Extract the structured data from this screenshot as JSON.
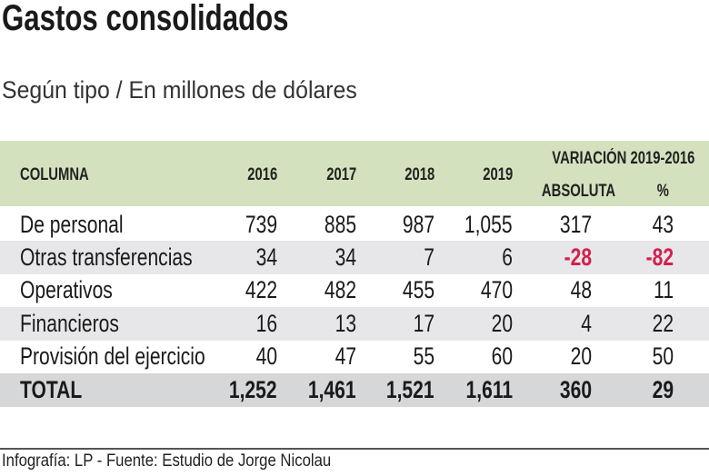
{
  "title": "Gastos consolidados",
  "subtitle": "Según tipo / En millones de dólares",
  "source": "Infografía: LP - Fuente: Estudio de Jorge Nicolau",
  "colors": {
    "header_bg": "#d4e1be",
    "alt_row": "#e7e7e9",
    "total_row": "#d6d7d9",
    "negative": "#d2204d"
  },
  "chart_data": {
    "type": "table",
    "title": "Gastos consolidados",
    "subtitle": "Según tipo / En millones de dólares",
    "header": {
      "column": "COLUMNA",
      "years": [
        "2016",
        "2017",
        "2018",
        "2019"
      ],
      "variation_group": "VARIACIÓN 2019-2016",
      "absolute": "ABSOLUTA",
      "percent": "%"
    },
    "rows": [
      {
        "label": "De personal",
        "values": [
          "739",
          "885",
          "987",
          "1,055"
        ],
        "absolute": "317",
        "percent": "43"
      },
      {
        "label": "Otras transferencias",
        "values": [
          "34",
          "34",
          "7",
          "6"
        ],
        "absolute": "-28",
        "percent": "-82"
      },
      {
        "label": "Operativos",
        "values": [
          "422",
          "482",
          "455",
          "470"
        ],
        "absolute": "48",
        "percent": "11"
      },
      {
        "label": "Financieros",
        "values": [
          "16",
          "13",
          "17",
          "20"
        ],
        "absolute": "4",
        "percent": "22"
      },
      {
        "label": "Provisión del ejercicio",
        "values": [
          "40",
          "47",
          "55",
          "60"
        ],
        "absolute": "20",
        "percent": "50"
      }
    ],
    "total": {
      "label": "TOTAL",
      "values": [
        "1,252",
        "1,461",
        "1,521",
        "1,611"
      ],
      "absolute": "360",
      "percent": "29"
    }
  }
}
